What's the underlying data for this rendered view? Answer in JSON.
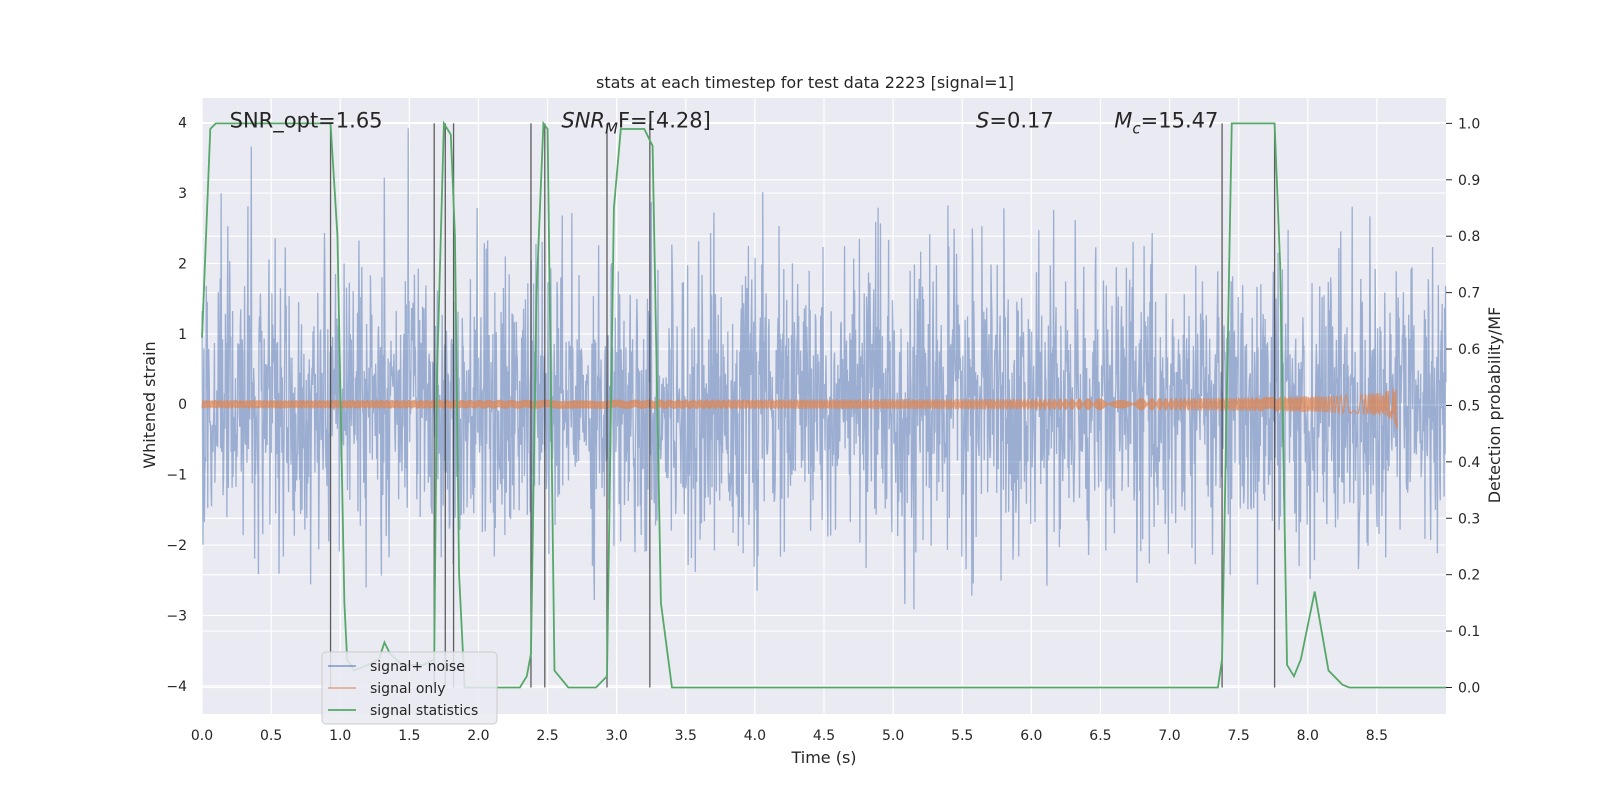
{
  "chart_data": {
    "type": "line",
    "title": "stats at each timestep for test data 2223 [signal=1]",
    "xlabel": "Time (s)",
    "ylabel": "Whitened strain",
    "y2label": "Detection probability/MF",
    "xlim": [
      0.0,
      9.0
    ],
    "ylim": [
      -4.4,
      4.35
    ],
    "y2lim": [
      -0.047,
      1.045
    ],
    "x_ticks": [
      "0.0",
      "0.5",
      "1.0",
      "1.5",
      "2.0",
      "2.5",
      "3.0",
      "3.5",
      "4.0",
      "4.5",
      "5.0",
      "5.5",
      "6.0",
      "6.5",
      "7.0",
      "7.5",
      "8.0",
      "8.5"
    ],
    "y_ticks": [
      "4",
      "3",
      "2",
      "1",
      "0",
      "−1",
      "−2",
      "−3",
      "−4"
    ],
    "y2_ticks": [
      "1.0",
      "0.9",
      "0.8",
      "0.7",
      "0.6",
      "0.5",
      "0.4",
      "0.3",
      "0.2",
      "0.1",
      "0.0"
    ],
    "grid": true,
    "legend_position": "lower-left",
    "annotations": [
      {
        "text": "SNR_opt=1.65",
        "x": 0.2,
        "y": 4.0
      },
      {
        "pre": "SNR",
        "sub": "M",
        "post": "F=[4.28]",
        "italic": true,
        "x": 2.6,
        "y": 4.0
      },
      {
        "pre": "S",
        "sub": "",
        "post": "=0.17",
        "italic": true,
        "x": 5.6,
        "y": 4.0
      },
      {
        "pre": "M",
        "sub": "c",
        "post": "=15.47",
        "italic": true,
        "x": 6.6,
        "y": 4.0
      }
    ],
    "series": [
      {
        "name": "signal+ noise",
        "color": "#4c72b0",
        "kind": "noise",
        "envelope_std": 1.0,
        "x_range": [
          0.0,
          9.0
        ]
      },
      {
        "name": "signal only",
        "color": "#dd8452",
        "kind": "chirp",
        "merger_time": 8.65,
        "peak_amplitude": 0.4
      },
      {
        "name": "signal statistics",
        "color": "#55a868",
        "axis": "right",
        "x": [
          0.0,
          0.06,
          0.1,
          0.2,
          0.5,
          0.93,
          0.98,
          1.03,
          1.05,
          1.1,
          1.2,
          1.28,
          1.32,
          1.36,
          1.45,
          1.6,
          1.68,
          1.7,
          1.75,
          1.8,
          1.83,
          1.86,
          1.9,
          2.0,
          2.2,
          2.3,
          2.35,
          2.38,
          2.42,
          2.47,
          2.5,
          2.55,
          2.65,
          2.85,
          2.93,
          2.98,
          3.03,
          3.1,
          3.2,
          3.26,
          3.32,
          3.4,
          3.5,
          4.0,
          5.0,
          6.0,
          6.5,
          7.0,
          7.35,
          7.38,
          7.45,
          7.5,
          7.6,
          7.7,
          7.76,
          7.8,
          7.85,
          7.9,
          7.95,
          8.05,
          8.15,
          8.25,
          8.3,
          8.5,
          9.0
        ],
        "y": [
          0.62,
          0.99,
          1.0,
          1.0,
          1.0,
          1.0,
          0.8,
          0.15,
          0.05,
          0.03,
          0.04,
          0.05,
          0.08,
          0.06,
          0.04,
          0.04,
          0.05,
          0.55,
          1.0,
          0.98,
          0.8,
          0.2,
          0.0,
          0.0,
          0.0,
          0.0,
          0.02,
          0.06,
          0.7,
          1.0,
          0.99,
          0.03,
          0.0,
          0.0,
          0.02,
          0.85,
          0.99,
          0.99,
          0.99,
          0.96,
          0.15,
          0.0,
          0.0,
          0.0,
          0.0,
          0.0,
          0.0,
          0.0,
          0.0,
          0.05,
          1.0,
          1.0,
          1.0,
          1.0,
          1.0,
          0.75,
          0.04,
          0.02,
          0.05,
          0.17,
          0.03,
          0.005,
          0.0,
          0.0,
          0.0
        ]
      }
    ],
    "vertical_lines": [
      0.93,
      1.68,
      1.76,
      1.82,
      2.38,
      2.48,
      2.93,
      3.24,
      7.38,
      7.76
    ]
  }
}
